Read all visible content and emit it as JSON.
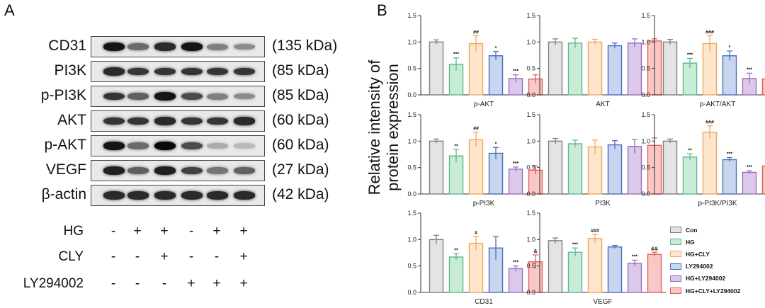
{
  "panel_a_label": "A",
  "panel_b_label": "B",
  "blots": [
    {
      "name": "CD31",
      "kda": "(135 kDa)",
      "intensity": [
        0.95,
        0.55,
        0.85,
        0.95,
        0.45,
        0.4
      ]
    },
    {
      "name": "PI3K",
      "kda": "(85 kDa)",
      "intensity": [
        0.85,
        0.8,
        0.8,
        0.8,
        0.8,
        0.8
      ]
    },
    {
      "name": "p-PI3K",
      "kda": "(85 kDa)",
      "intensity": [
        0.8,
        0.6,
        0.95,
        0.7,
        0.45,
        0.4
      ]
    },
    {
      "name": "AKT",
      "kda": "(60 kDa)",
      "intensity": [
        0.8,
        0.8,
        0.85,
        0.8,
        0.8,
        0.85
      ]
    },
    {
      "name": "p-AKT",
      "kda": "(60 kDa)",
      "intensity": [
        0.95,
        0.55,
        1.0,
        0.7,
        0.25,
        0.18
      ]
    },
    {
      "name": "VEGF",
      "kda": "(27 kDa)",
      "intensity": [
        0.9,
        0.6,
        0.9,
        0.75,
        0.5,
        0.6
      ]
    },
    {
      "name": "β-actin",
      "kda": "(42 kDa)",
      "intensity": [
        0.85,
        0.85,
        0.85,
        0.85,
        0.85,
        0.85
      ]
    }
  ],
  "treatments": [
    {
      "name": "HG",
      "signs": [
        "-",
        "+",
        "+",
        "-",
        "+",
        "+"
      ]
    },
    {
      "name": "CLY",
      "signs": [
        "-",
        "-",
        "+",
        "-",
        "-",
        "+"
      ]
    },
    {
      "name": "LY294002",
      "signs": [
        "-",
        "-",
        "-",
        "+",
        "+",
        "+"
      ]
    }
  ],
  "y_axis_title_line1": "Relative intensity of",
  "y_axis_title_line2": "protein expression",
  "colors": {
    "fill": [
      "#e4e4e4",
      "#c9ecd9",
      "#fde6cc",
      "#c8d5ef",
      "#dcc8e8",
      "#f8c8c6"
    ],
    "edge": [
      "#7f7f7f",
      "#5fb98a",
      "#f0a860",
      "#4a6fc0",
      "#9b70c0",
      "#e06060"
    ]
  },
  "legend": [
    "Con",
    "HG",
    "HG+CLY",
    "LY294002",
    "HG+LY294002",
    "HG+CLY+LY294002"
  ],
  "chart_data": [
    {
      "type": "bar",
      "title": "p-AKT",
      "categories": [
        "Con",
        "HG",
        "HG+CLY",
        "LY294002",
        "HG+LY294002",
        "HG+CLY+LY294002"
      ],
      "values": [
        1.0,
        0.58,
        0.97,
        0.74,
        0.31,
        0.3
      ],
      "errors": [
        0.04,
        0.12,
        0.15,
        0.08,
        0.07,
        0.08
      ],
      "annotations": [
        "",
        "***",
        "##",
        "*",
        "***",
        ""
      ],
      "ylim": [
        0,
        1.5
      ],
      "yticks": [
        "0.0",
        "0.5",
        "1.0",
        "1.5"
      ]
    },
    {
      "type": "bar",
      "title": "AKT",
      "categories": [
        "Con",
        "HG",
        "HG+CLY",
        "LY294002",
        "HG+LY294002",
        "HG+CLY+LY294002"
      ],
      "values": [
        1.0,
        0.98,
        1.0,
        0.93,
        0.98,
        1.02
      ],
      "errors": [
        0.06,
        0.09,
        0.05,
        0.05,
        0.08,
        0.04
      ],
      "annotations": [
        "",
        "",
        "",
        "",
        "",
        ""
      ],
      "ylim": [
        0,
        1.5
      ],
      "yticks": [
        "0.0",
        "0.5",
        "1.0",
        "1.5"
      ]
    },
    {
      "type": "bar",
      "title": "p-AKT/AKT",
      "categories": [
        "Con",
        "HG",
        "HG+CLY",
        "LY294002",
        "HG+LY294002",
        "HG+CLY+LY294002"
      ],
      "values": [
        1.0,
        0.6,
        0.97,
        0.74,
        0.31,
        0.3
      ],
      "errors": [
        0.05,
        0.09,
        0.15,
        0.09,
        0.1,
        0.07
      ],
      "annotations": [
        "",
        "***",
        "###",
        "*",
        "***",
        ""
      ],
      "ylim": [
        0,
        1.5
      ],
      "yticks": [
        "0.0",
        "0.5",
        "1.0",
        "1.5"
      ]
    },
    {
      "type": "bar",
      "title": "p-PI3K",
      "categories": [
        "Con",
        "HG",
        "HG+CLY",
        "LY294002",
        "HG+LY294002",
        "HG+CLY+LY294002"
      ],
      "values": [
        1.0,
        0.72,
        1.03,
        0.77,
        0.47,
        0.45
      ],
      "errors": [
        0.04,
        0.12,
        0.14,
        0.11,
        0.04,
        0.08
      ],
      "annotations": [
        "",
        "**",
        "##",
        "*",
        "***",
        ""
      ],
      "ylim": [
        0,
        1.5
      ],
      "yticks": [
        "0.0",
        "0.5",
        "1.0",
        "1.5"
      ]
    },
    {
      "type": "bar",
      "title": "PI3K",
      "categories": [
        "Con",
        "HG",
        "HG+CLY",
        "LY294002",
        "HG+LY294002",
        "HG+CLY+LY294002"
      ],
      "values": [
        1.0,
        0.95,
        0.89,
        0.93,
        0.9,
        0.92
      ],
      "errors": [
        0.05,
        0.07,
        0.13,
        0.08,
        0.13,
        0.14
      ],
      "annotations": [
        "",
        "",
        "",
        "",
        "",
        ""
      ],
      "ylim": [
        0,
        1.5
      ],
      "yticks": [
        "0.0",
        "0.5",
        "1.0",
        "1.5"
      ]
    },
    {
      "type": "bar",
      "title": "p-PI3K/PI3K",
      "categories": [
        "Con",
        "HG",
        "HG+CLY",
        "LY294002",
        "HG+LY294002",
        "HG+CLY+LY294002"
      ],
      "values": [
        1.0,
        0.7,
        1.17,
        0.65,
        0.41,
        0.53
      ],
      "errors": [
        0.04,
        0.06,
        0.12,
        0.04,
        0.03,
        0.13
      ],
      "annotations": [
        "",
        "**",
        "###",
        "***",
        "***",
        ""
      ],
      "ylim": [
        0,
        1.5
      ],
      "yticks": [
        "0.0",
        "0.5",
        "1.0",
        "1.5"
      ]
    },
    {
      "type": "bar",
      "title": "CD31",
      "categories": [
        "Con",
        "HG",
        "HG+CLY",
        "LY294002",
        "HG+LY294002",
        "HG+CLY+LY294002"
      ],
      "values": [
        1.0,
        0.67,
        0.93,
        0.84,
        0.45,
        0.58
      ],
      "errors": [
        0.08,
        0.06,
        0.13,
        0.22,
        0.05,
        0.13
      ],
      "annotations": [
        "",
        "**",
        "#",
        "",
        "***",
        "&"
      ],
      "ylim": [
        0,
        1.5
      ],
      "yticks": [
        "0.0",
        "0.5",
        "1.0",
        "1.5"
      ]
    },
    {
      "type": "bar",
      "title": "VEGF",
      "categories": [
        "Con",
        "HG",
        "HG+CLY",
        "LY294002",
        "HG+LY294002",
        "HG+CLY+LY294002"
      ],
      "values": [
        0.98,
        0.76,
        1.02,
        0.86,
        0.55,
        0.72
      ],
      "errors": [
        0.05,
        0.08,
        0.08,
        0.03,
        0.06,
        0.04
      ],
      "annotations": [
        "",
        "***",
        "###",
        "",
        "***",
        "&&"
      ],
      "ylim": [
        0,
        1.5
      ],
      "yticks": [
        "0.0",
        "0.5",
        "1.0",
        "1.5"
      ]
    }
  ]
}
